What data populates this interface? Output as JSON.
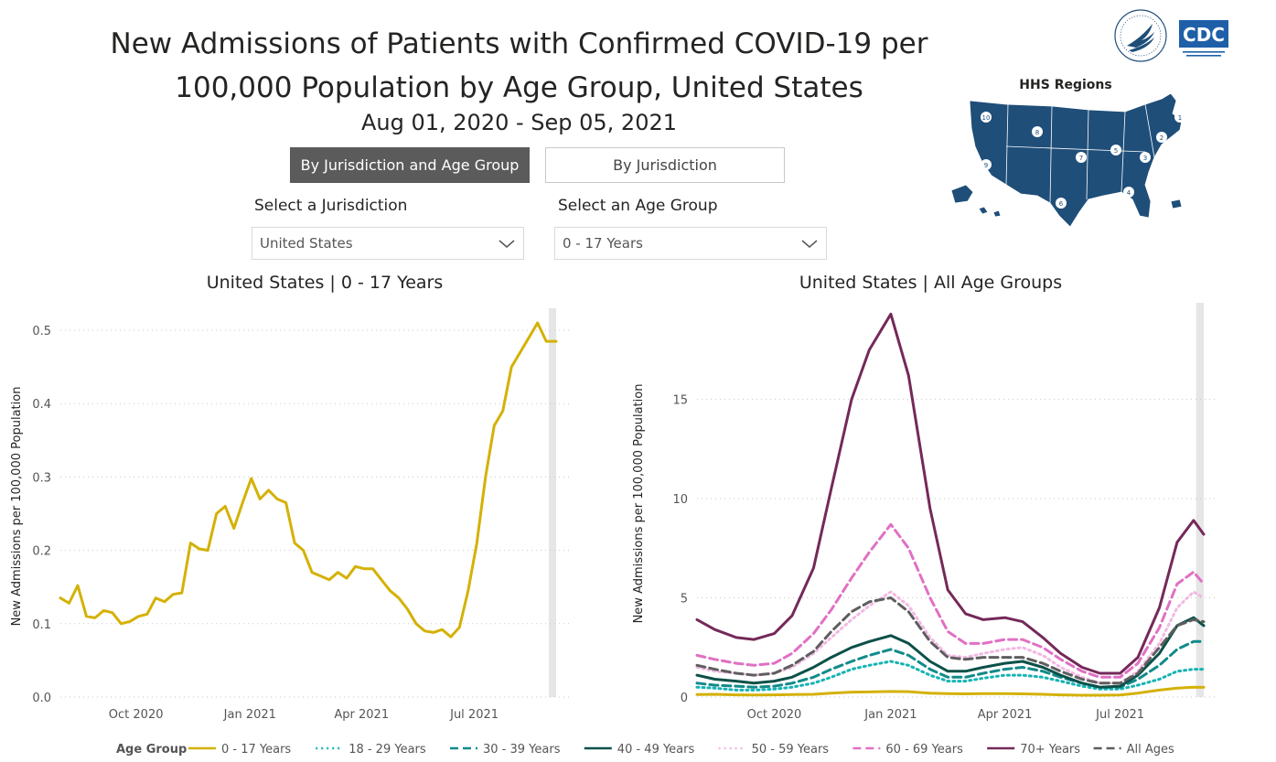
{
  "header": {
    "title_line1": "New Admissions of Patients with Confirmed COVID-19 per",
    "title_line2": "100,000 Population by Age Group, United States",
    "date_range": "Aug 01, 2020 - Sep 05, 2021"
  },
  "tabs": [
    {
      "label": "By Jurisdiction and Age Group",
      "active": true
    },
    {
      "label": "By Jurisdiction",
      "active": false
    }
  ],
  "filters": {
    "jurisdiction_label": "Select a Jurisdiction",
    "jurisdiction_value": "United States",
    "age_label": "Select an Age Group",
    "age_value": "0 - 17 Years"
  },
  "map": {
    "title": "HHS Regions",
    "region_numbers": [
      "1",
      "2",
      "3",
      "4",
      "5",
      "6",
      "7",
      "8",
      "9",
      "10"
    ],
    "fill": "#1f4e79"
  },
  "logos": {
    "hhs": "hhs-eagle-seal",
    "cdc": "CDC"
  },
  "chart_data": [
    {
      "type": "line",
      "title": "United States | 0 - 17 Years",
      "ylabel": "New Admissions per 100,000 Population",
      "xlabel": "",
      "x_ticks": [
        {
          "label": "Oct 2020",
          "date": "2020-10-01"
        },
        {
          "label": "Jan 2021",
          "date": "2021-01-01"
        },
        {
          "label": "Apr 2021",
          "date": "2021-04-01"
        },
        {
          "label": "Jul 2021",
          "date": "2021-07-01"
        }
      ],
      "y_ticks": [
        "0.0",
        "0.1",
        "0.2",
        "0.3",
        "0.4",
        "0.5"
      ],
      "xlim": [
        "2020-08-01",
        "2021-09-05"
      ],
      "ylim": [
        0,
        0.52
      ],
      "grid": "horizontal dotted",
      "highlight_band": [
        "2021-08-30",
        "2021-09-05"
      ],
      "series": [
        {
          "color": "#d4b106",
          "dash": "solid",
          "x": [
            "2020-08-01",
            "2020-08-08",
            "2020-08-15",
            "2020-08-22",
            "2020-08-29",
            "2020-09-05",
            "2020-09-12",
            "2020-09-19",
            "2020-09-26",
            "2020-10-03",
            "2020-10-10",
            "2020-10-17",
            "2020-10-24",
            "2020-10-31",
            "2020-11-07",
            "2020-11-14",
            "2020-11-21",
            "2020-11-28",
            "2020-12-05",
            "2020-12-12",
            "2020-12-19",
            "2020-12-26",
            "2021-01-02",
            "2021-01-09",
            "2021-01-16",
            "2021-01-23",
            "2021-01-30",
            "2021-02-06",
            "2021-02-13",
            "2021-02-20",
            "2021-02-27",
            "2021-03-06",
            "2021-03-13",
            "2021-03-20",
            "2021-03-27",
            "2021-04-03",
            "2021-04-10",
            "2021-04-17",
            "2021-04-24",
            "2021-05-01",
            "2021-05-08",
            "2021-05-15",
            "2021-05-22",
            "2021-05-29",
            "2021-06-05",
            "2021-06-12",
            "2021-06-19",
            "2021-06-26",
            "2021-07-03",
            "2021-07-10",
            "2021-07-17",
            "2021-07-24",
            "2021-07-31",
            "2021-08-07",
            "2021-08-14",
            "2021-08-21",
            "2021-08-28",
            "2021-09-05"
          ],
          "y": [
            0.135,
            0.128,
            0.152,
            0.11,
            0.108,
            0.118,
            0.115,
            0.1,
            0.103,
            0.11,
            0.113,
            0.135,
            0.13,
            0.14,
            0.142,
            0.21,
            0.202,
            0.2,
            0.25,
            0.26,
            0.23,
            0.265,
            0.298,
            0.27,
            0.282,
            0.27,
            0.265,
            0.21,
            0.2,
            0.17,
            0.165,
            0.16,
            0.17,
            0.162,
            0.178,
            0.175,
            0.175,
            0.16,
            0.145,
            0.135,
            0.12,
            0.1,
            0.09,
            0.088,
            0.092,
            0.082,
            0.095,
            0.145,
            0.21,
            0.3,
            0.37,
            0.39,
            0.45,
            0.47,
            0.49,
            0.51,
            0.485,
            0.485
          ]
        }
      ]
    },
    {
      "type": "line",
      "title": "United States | All Age Groups",
      "ylabel": "New Admissions per 100,000 Population",
      "xlabel": "",
      "x_ticks": [
        {
          "label": "Oct 2020",
          "date": "2020-10-01"
        },
        {
          "label": "Jan 2021",
          "date": "2021-01-01"
        },
        {
          "label": "Apr 2021",
          "date": "2021-04-01"
        },
        {
          "label": "Jul 2021",
          "date": "2021-07-01"
        }
      ],
      "y_ticks": [
        "0",
        "5",
        "10",
        "15"
      ],
      "xlim": [
        "2020-08-01",
        "2021-09-05"
      ],
      "ylim": [
        0,
        19.5
      ],
      "grid": "horizontal dotted",
      "highlight_band": [
        "2021-08-30",
        "2021-09-05"
      ],
      "x": [
        "2020-08-01",
        "2020-08-15",
        "2020-09-01",
        "2020-09-15",
        "2020-10-01",
        "2020-10-15",
        "2020-11-01",
        "2020-11-15",
        "2020-12-01",
        "2020-12-15",
        "2021-01-01",
        "2021-01-15",
        "2021-02-01",
        "2021-02-15",
        "2021-03-01",
        "2021-03-15",
        "2021-04-01",
        "2021-04-15",
        "2021-05-01",
        "2021-05-15",
        "2021-06-01",
        "2021-06-15",
        "2021-07-01",
        "2021-07-15",
        "2021-08-01",
        "2021-08-15",
        "2021-08-28",
        "2021-09-05"
      ],
      "series": [
        {
          "name": "0 - 17 Years",
          "color": "#d4b106",
          "dash": "solid",
          "y": [
            0.13,
            0.14,
            0.11,
            0.1,
            0.11,
            0.13,
            0.14,
            0.2,
            0.25,
            0.26,
            0.28,
            0.27,
            0.2,
            0.17,
            0.16,
            0.17,
            0.17,
            0.16,
            0.14,
            0.11,
            0.09,
            0.09,
            0.1,
            0.2,
            0.35,
            0.45,
            0.5,
            0.49
          ]
        },
        {
          "name": "18 - 29 Years",
          "color": "#17b3b3",
          "dash": "dotted",
          "y": [
            0.5,
            0.45,
            0.35,
            0.35,
            0.4,
            0.5,
            0.7,
            1.0,
            1.4,
            1.6,
            1.8,
            1.6,
            1.1,
            0.8,
            0.8,
            0.95,
            1.1,
            1.1,
            1.0,
            0.8,
            0.55,
            0.4,
            0.4,
            0.6,
            0.9,
            1.3,
            1.4,
            1.4
          ]
        },
        {
          "name": "30 - 39 Years",
          "color": "#118a8a",
          "dash": "dashed",
          "y": [
            0.7,
            0.6,
            0.55,
            0.5,
            0.55,
            0.7,
            1.0,
            1.4,
            1.8,
            2.1,
            2.4,
            2.1,
            1.4,
            1.0,
            1.0,
            1.2,
            1.4,
            1.5,
            1.3,
            1.0,
            0.7,
            0.5,
            0.5,
            0.9,
            1.6,
            2.4,
            2.8,
            2.8
          ]
        },
        {
          "name": "40 - 49 Years",
          "color": "#0b5149",
          "dash": "solid",
          "y": [
            1.1,
            0.9,
            0.8,
            0.7,
            0.8,
            1.0,
            1.5,
            2.0,
            2.5,
            2.8,
            3.1,
            2.7,
            1.8,
            1.3,
            1.3,
            1.5,
            1.7,
            1.8,
            1.5,
            1.1,
            0.7,
            0.5,
            0.55,
            1.1,
            2.2,
            3.6,
            4.0,
            3.6
          ]
        },
        {
          "name": "50 - 59 Years",
          "color": "#f2b8e3",
          "dash": "dotted",
          "y": [
            1.5,
            1.3,
            1.2,
            1.1,
            1.2,
            1.5,
            2.2,
            3.0,
            3.9,
            4.6,
            5.3,
            4.6,
            3.0,
            2.1,
            2.0,
            2.2,
            2.4,
            2.5,
            2.1,
            1.5,
            1.0,
            0.7,
            0.7,
            1.3,
            2.7,
            4.5,
            5.3,
            5.0
          ]
        },
        {
          "name": "60 - 69 Years",
          "color": "#e070c4",
          "dash": "dashed",
          "y": [
            2.1,
            1.9,
            1.7,
            1.6,
            1.7,
            2.2,
            3.2,
            4.4,
            6.0,
            7.3,
            8.7,
            7.5,
            5.0,
            3.3,
            2.7,
            2.7,
            2.9,
            2.9,
            2.5,
            1.9,
            1.3,
            1.0,
            1.0,
            1.7,
            3.5,
            5.7,
            6.3,
            5.7
          ]
        },
        {
          "name": "70+ Years",
          "color": "#742959",
          "dash": "solid",
          "y": [
            3.9,
            3.4,
            3.0,
            2.9,
            3.2,
            4.1,
            6.5,
            10.5,
            15.0,
            17.5,
            19.3,
            16.2,
            9.5,
            5.4,
            4.2,
            3.9,
            4.0,
            3.8,
            3.0,
            2.2,
            1.5,
            1.2,
            1.2,
            2.0,
            4.5,
            7.8,
            8.9,
            8.2
          ]
        },
        {
          "name": "All Ages",
          "color": "#5e5e5e",
          "dash": "dashed",
          "y": [
            1.6,
            1.4,
            1.2,
            1.1,
            1.2,
            1.6,
            2.3,
            3.3,
            4.3,
            4.8,
            5.0,
            4.3,
            2.8,
            2.0,
            1.9,
            2.0,
            2.0,
            2.0,
            1.7,
            1.3,
            0.9,
            0.7,
            0.7,
            1.2,
            2.5,
            3.6,
            3.9,
            3.8
          ]
        }
      ]
    }
  ],
  "legend": {
    "title": "Age Group",
    "items": [
      {
        "label": "0 - 17 Years",
        "color": "#d4b106",
        "dash": "solid"
      },
      {
        "label": "18 - 29 Years",
        "color": "#17b3b3",
        "dash": "dotted"
      },
      {
        "label": "30 - 39 Years",
        "color": "#118a8a",
        "dash": "dashed"
      },
      {
        "label": "40 - 49 Years",
        "color": "#0b5149",
        "dash": "solid"
      },
      {
        "label": "50 - 59 Years",
        "color": "#f2b8e3",
        "dash": "dotted"
      },
      {
        "label": "60 - 69 Years",
        "color": "#e070c4",
        "dash": "dashed"
      },
      {
        "label": "70+ Years",
        "color": "#742959",
        "dash": "solid"
      },
      {
        "label": "All Ages",
        "color": "#5e5e5e",
        "dash": "dashed"
      }
    ]
  }
}
